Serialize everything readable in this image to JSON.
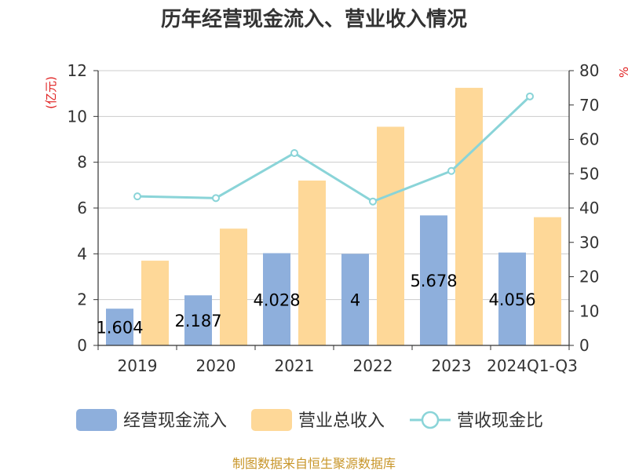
{
  "chart_data": {
    "type": "bar",
    "title": "历年经营现金流入、营业收入情况",
    "left_axis_unit": "(亿元)",
    "right_axis_unit": "%",
    "categories": [
      "2019",
      "2020",
      "2021",
      "2022",
      "2023",
      "2024Q1-Q3"
    ],
    "series": [
      {
        "name": "经营现金流入",
        "type": "bar",
        "axis": "left",
        "color": "#8eafdc",
        "values": [
          1.604,
          2.187,
          4.028,
          4,
          5.678,
          4.056
        ],
        "labels": [
          "1.604",
          "2.187",
          "4.028",
          "4",
          "5.678",
          "4.056"
        ]
      },
      {
        "name": "营业总收入",
        "type": "bar",
        "axis": "left",
        "color": "#fed898",
        "values": [
          3.7,
          5.1,
          7.2,
          9.55,
          11.25,
          5.6
        ]
      },
      {
        "name": "营收现金比",
        "type": "line",
        "axis": "right",
        "color": "#8ad4d8",
        "values": [
          43.4,
          42.9,
          56,
          41.9,
          50.8,
          72.5
        ]
      }
    ],
    "y_left": {
      "min": 0,
      "max": 12,
      "ticks": [
        0,
        2,
        4,
        6,
        8,
        10,
        12
      ]
    },
    "y_right": {
      "min": 0,
      "max": 80,
      "ticks": [
        0,
        10,
        20,
        30,
        40,
        50,
        60,
        70,
        80
      ]
    },
    "grid": true,
    "legend_position": "bottom"
  },
  "source": "制图数据来自恒生聚源数据库"
}
